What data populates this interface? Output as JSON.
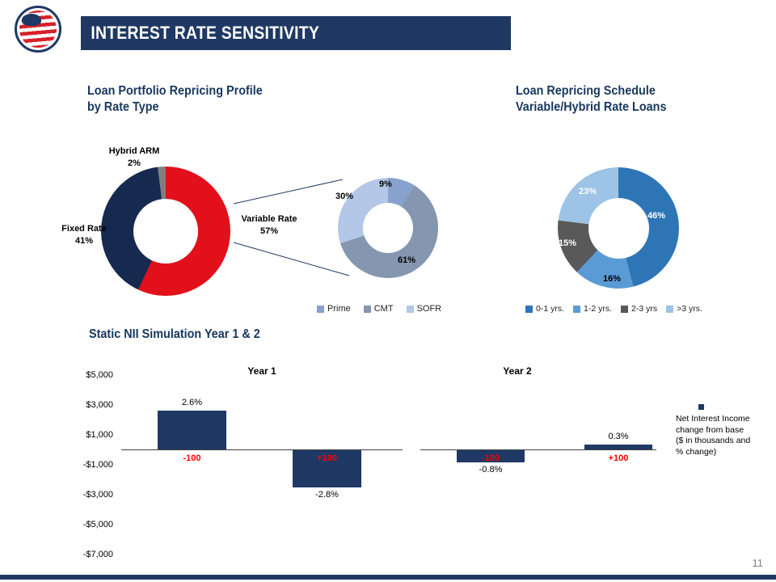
{
  "colors": {
    "brand_navy": "#1f3864",
    "accent_red": "#e2101a",
    "category_label_red": "#ff0000",
    "page_number_gray": "#808080"
  },
  "ui": {
    "header": {
      "title": "INTEREST RATE SENSITIVITY"
    },
    "left_chart": {
      "title1": "Loan Portfolio Repricing Profile",
      "title2": "by Rate Type",
      "hybrid_label": "Hybrid ARM",
      "hybrid_pct": "2%",
      "fixed_label": "Fixed Rate",
      "fixed_pct": "41%",
      "variable_label": "Variable Rate",
      "variable_pct": "57%"
    },
    "mid_chart": {
      "pct_prime": "9%",
      "pct_cmt": "61%",
      "pct_sofr": "30%",
      "legend": [
        "Prime",
        "CMT",
        "SOFR"
      ]
    },
    "right_chart": {
      "title1": "Loan Repricing Schedule",
      "title2": "Variable/Hybrid Rate Loans",
      "pcts": [
        "46%",
        "16%",
        "15%",
        "23%"
      ],
      "legend": [
        "0-1 yrs.",
        "1-2 yrs.",
        "2-3 yrs",
        ">3 yrs."
      ]
    },
    "nii": {
      "title": "Static NII Simulation Year 1 & 2",
      "yticks": [
        "$5,000",
        "$3,000",
        "$1,000",
        "-$1,000",
        "-$3,000",
        "-$5,000",
        "-$7,000"
      ],
      "year1_title": "Year 1",
      "year2_title": "Year 2",
      "year1_cats": [
        "-100",
        "+100"
      ],
      "year2_cats": [
        "-100",
        "+100"
      ],
      "year1_pcts": [
        "2.6%",
        "-2.8%"
      ],
      "year2_pcts": [
        "-0.8%",
        "0.3%"
      ],
      "legend_text": "Net Interest Income change from base ($ in thousands and % change)"
    },
    "page_number": "11"
  },
  "chart_data": [
    {
      "type": "pie",
      "title": "Loan Portfolio Repricing Profile by Rate Type",
      "labels": [
        "Variable Rate",
        "Fixed Rate",
        "Hybrid ARM"
      ],
      "values": [
        57,
        41,
        2
      ],
      "unit": "%",
      "colors": [
        "#e2101a",
        "#16294f",
        "#7f7f7f"
      ],
      "donut": true
    },
    {
      "type": "pie",
      "title": "",
      "labels": [
        "Prime",
        "CMT",
        "SOFR"
      ],
      "values": [
        9,
        61,
        30
      ],
      "unit": "%",
      "colors": [
        "#87a2cc",
        "#8496b0",
        "#b4c7e7"
      ],
      "donut": true,
      "legend_position": "bottom"
    },
    {
      "type": "pie",
      "title": "Loan Repricing Schedule Variable/Hybrid Rate Loans",
      "labels": [
        "0-1 yrs.",
        "1-2 yrs.",
        "2-3 yrs",
        ">3 yrs."
      ],
      "values": [
        46,
        16,
        15,
        23
      ],
      "unit": "%",
      "colors": [
        "#2e75b6",
        "#5b9bd5",
        "#595959",
        "#9dc3e6"
      ],
      "donut": true,
      "legend_position": "bottom"
    },
    {
      "type": "bar",
      "title": "Static NII Simulation Year 1 & 2",
      "ylim": [
        -7000,
        5000
      ],
      "yticks": [
        5000,
        3000,
        1000,
        -1000,
        -3000,
        -5000,
        -7000
      ],
      "ytick_labels": [
        "$5,000",
        "$3,000",
        "$1,000",
        "-$1,000",
        "-$3,000",
        "-$5,000",
        "-$7,000"
      ],
      "bar_color": "#1f3864",
      "groups": [
        {
          "name": "Year 1",
          "categories": [
            "-100",
            "+100"
          ],
          "values": [
            2600,
            -2500
          ],
          "pct_change": [
            "2.6%",
            "-2.8%"
          ]
        },
        {
          "name": "Year 2",
          "categories": [
            "-100",
            "+100"
          ],
          "values": [
            -850,
            350
          ],
          "pct_change": [
            "-0.8%",
            "0.3%"
          ]
        }
      ],
      "legend": "Net Interest Income change from base ($ in thousands and % change)",
      "grid": false,
      "legend_position": "right"
    }
  ]
}
